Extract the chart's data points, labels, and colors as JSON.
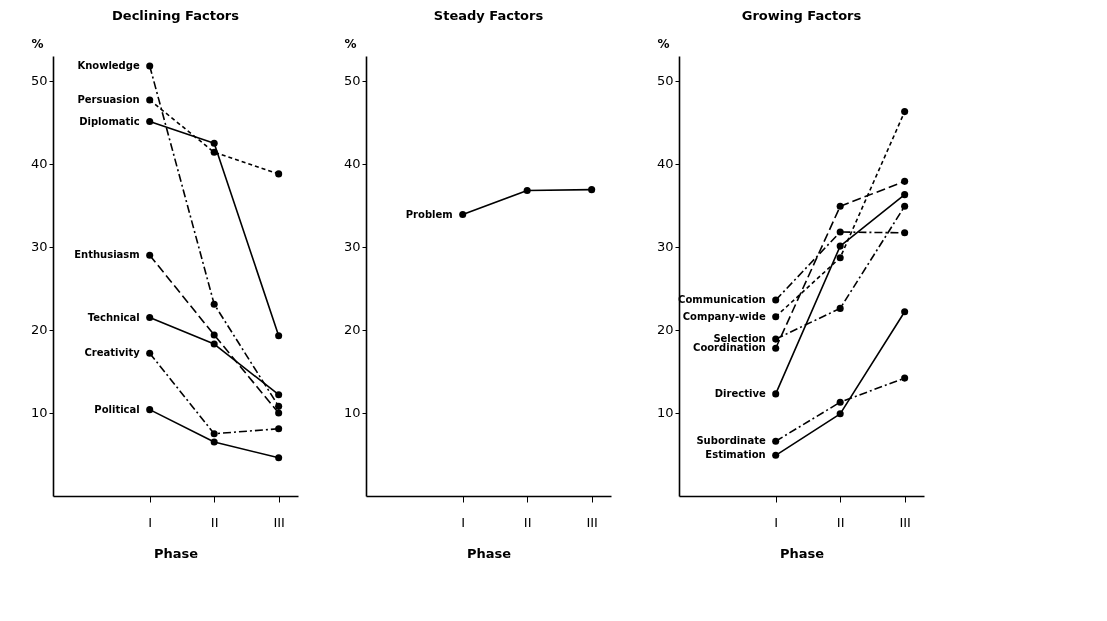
{
  "chart_data": [
    {
      "type": "line",
      "title": "Declining Factors",
      "xlabel": "Phase",
      "ylabel": "%",
      "categories": [
        "I",
        "II",
        "III"
      ],
      "ylim": [
        0,
        53
      ],
      "yticks": [
        10,
        20,
        30,
        40,
        50
      ],
      "marker": "circle",
      "grid": false,
      "series": [
        {
          "name": "Knowledge",
          "color": "#000000",
          "line_style": "dashdot",
          "values": [
            51.8,
            23.1,
            10.8
          ]
        },
        {
          "name": "Persuasion",
          "color": "#000000",
          "line_style": "dashed",
          "values": [
            47.7,
            41.4,
            38.8
          ]
        },
        {
          "name": "Diplomatic",
          "color": "#000000",
          "line_style": "solid",
          "values": [
            45.1,
            42.5,
            19.3
          ]
        },
        {
          "name": "Enthusiasm",
          "color": "#000000",
          "line_style": "longdash",
          "values": [
            29.0,
            19.4,
            10.0
          ]
        },
        {
          "name": "Technical",
          "color": "#000000",
          "line_style": "solid",
          "values": [
            21.5,
            18.3,
            12.2
          ]
        },
        {
          "name": "Creativity",
          "color": "#000000",
          "line_style": "dashdot",
          "values": [
            17.2,
            7.5,
            8.1
          ]
        },
        {
          "name": "Political",
          "color": "#000000",
          "line_style": "solid",
          "values": [
            10.4,
            6.5,
            4.6
          ]
        }
      ]
    },
    {
      "type": "line",
      "title": "Steady Factors",
      "xlabel": "Phase",
      "ylabel": "%",
      "categories": [
        "I",
        "II",
        "III"
      ],
      "ylim": [
        0,
        53
      ],
      "yticks": [
        10,
        20,
        30,
        40,
        50
      ],
      "marker": "circle",
      "grid": false,
      "series": [
        {
          "name": "Problem",
          "color": "#000000",
          "line_style": "solid",
          "values": [
            33.9,
            36.8,
            36.9
          ]
        }
      ]
    },
    {
      "type": "line",
      "title": "Growing Factors",
      "xlabel": "Phase",
      "ylabel": "%",
      "categories": [
        "I",
        "II",
        "III"
      ],
      "ylim": [
        0,
        53
      ],
      "yticks": [
        10,
        20,
        30,
        40,
        50
      ],
      "marker": "circle",
      "grid": false,
      "series": [
        {
          "name": "Communication",
          "color": "#000000",
          "line_style": "dashdot",
          "values": [
            23.6,
            31.8,
            31.7
          ]
        },
        {
          "name": "Company-wide",
          "color": "#000000",
          "line_style": "dashed",
          "values": [
            21.6,
            28.7,
            46.3
          ]
        },
        {
          "name": "Selection",
          "color": "#000000",
          "line_style": "dashdot",
          "values": [
            18.9,
            22.6,
            34.9
          ]
        },
        {
          "name": "Coordination",
          "color": "#000000",
          "line_style": "longdash",
          "values": [
            17.8,
            34.9,
            37.9
          ]
        },
        {
          "name": "Directive",
          "color": "#000000",
          "line_style": "solid",
          "values": [
            12.3,
            30.1,
            36.3
          ]
        },
        {
          "name": "Subordinate",
          "color": "#000000",
          "line_style": "dashdot",
          "values": [
            6.6,
            11.3,
            14.2
          ]
        },
        {
          "name": "Estimation",
          "color": "#000000",
          "line_style": "solid",
          "values": [
            4.9,
            9.9,
            22.2
          ]
        }
      ]
    }
  ]
}
